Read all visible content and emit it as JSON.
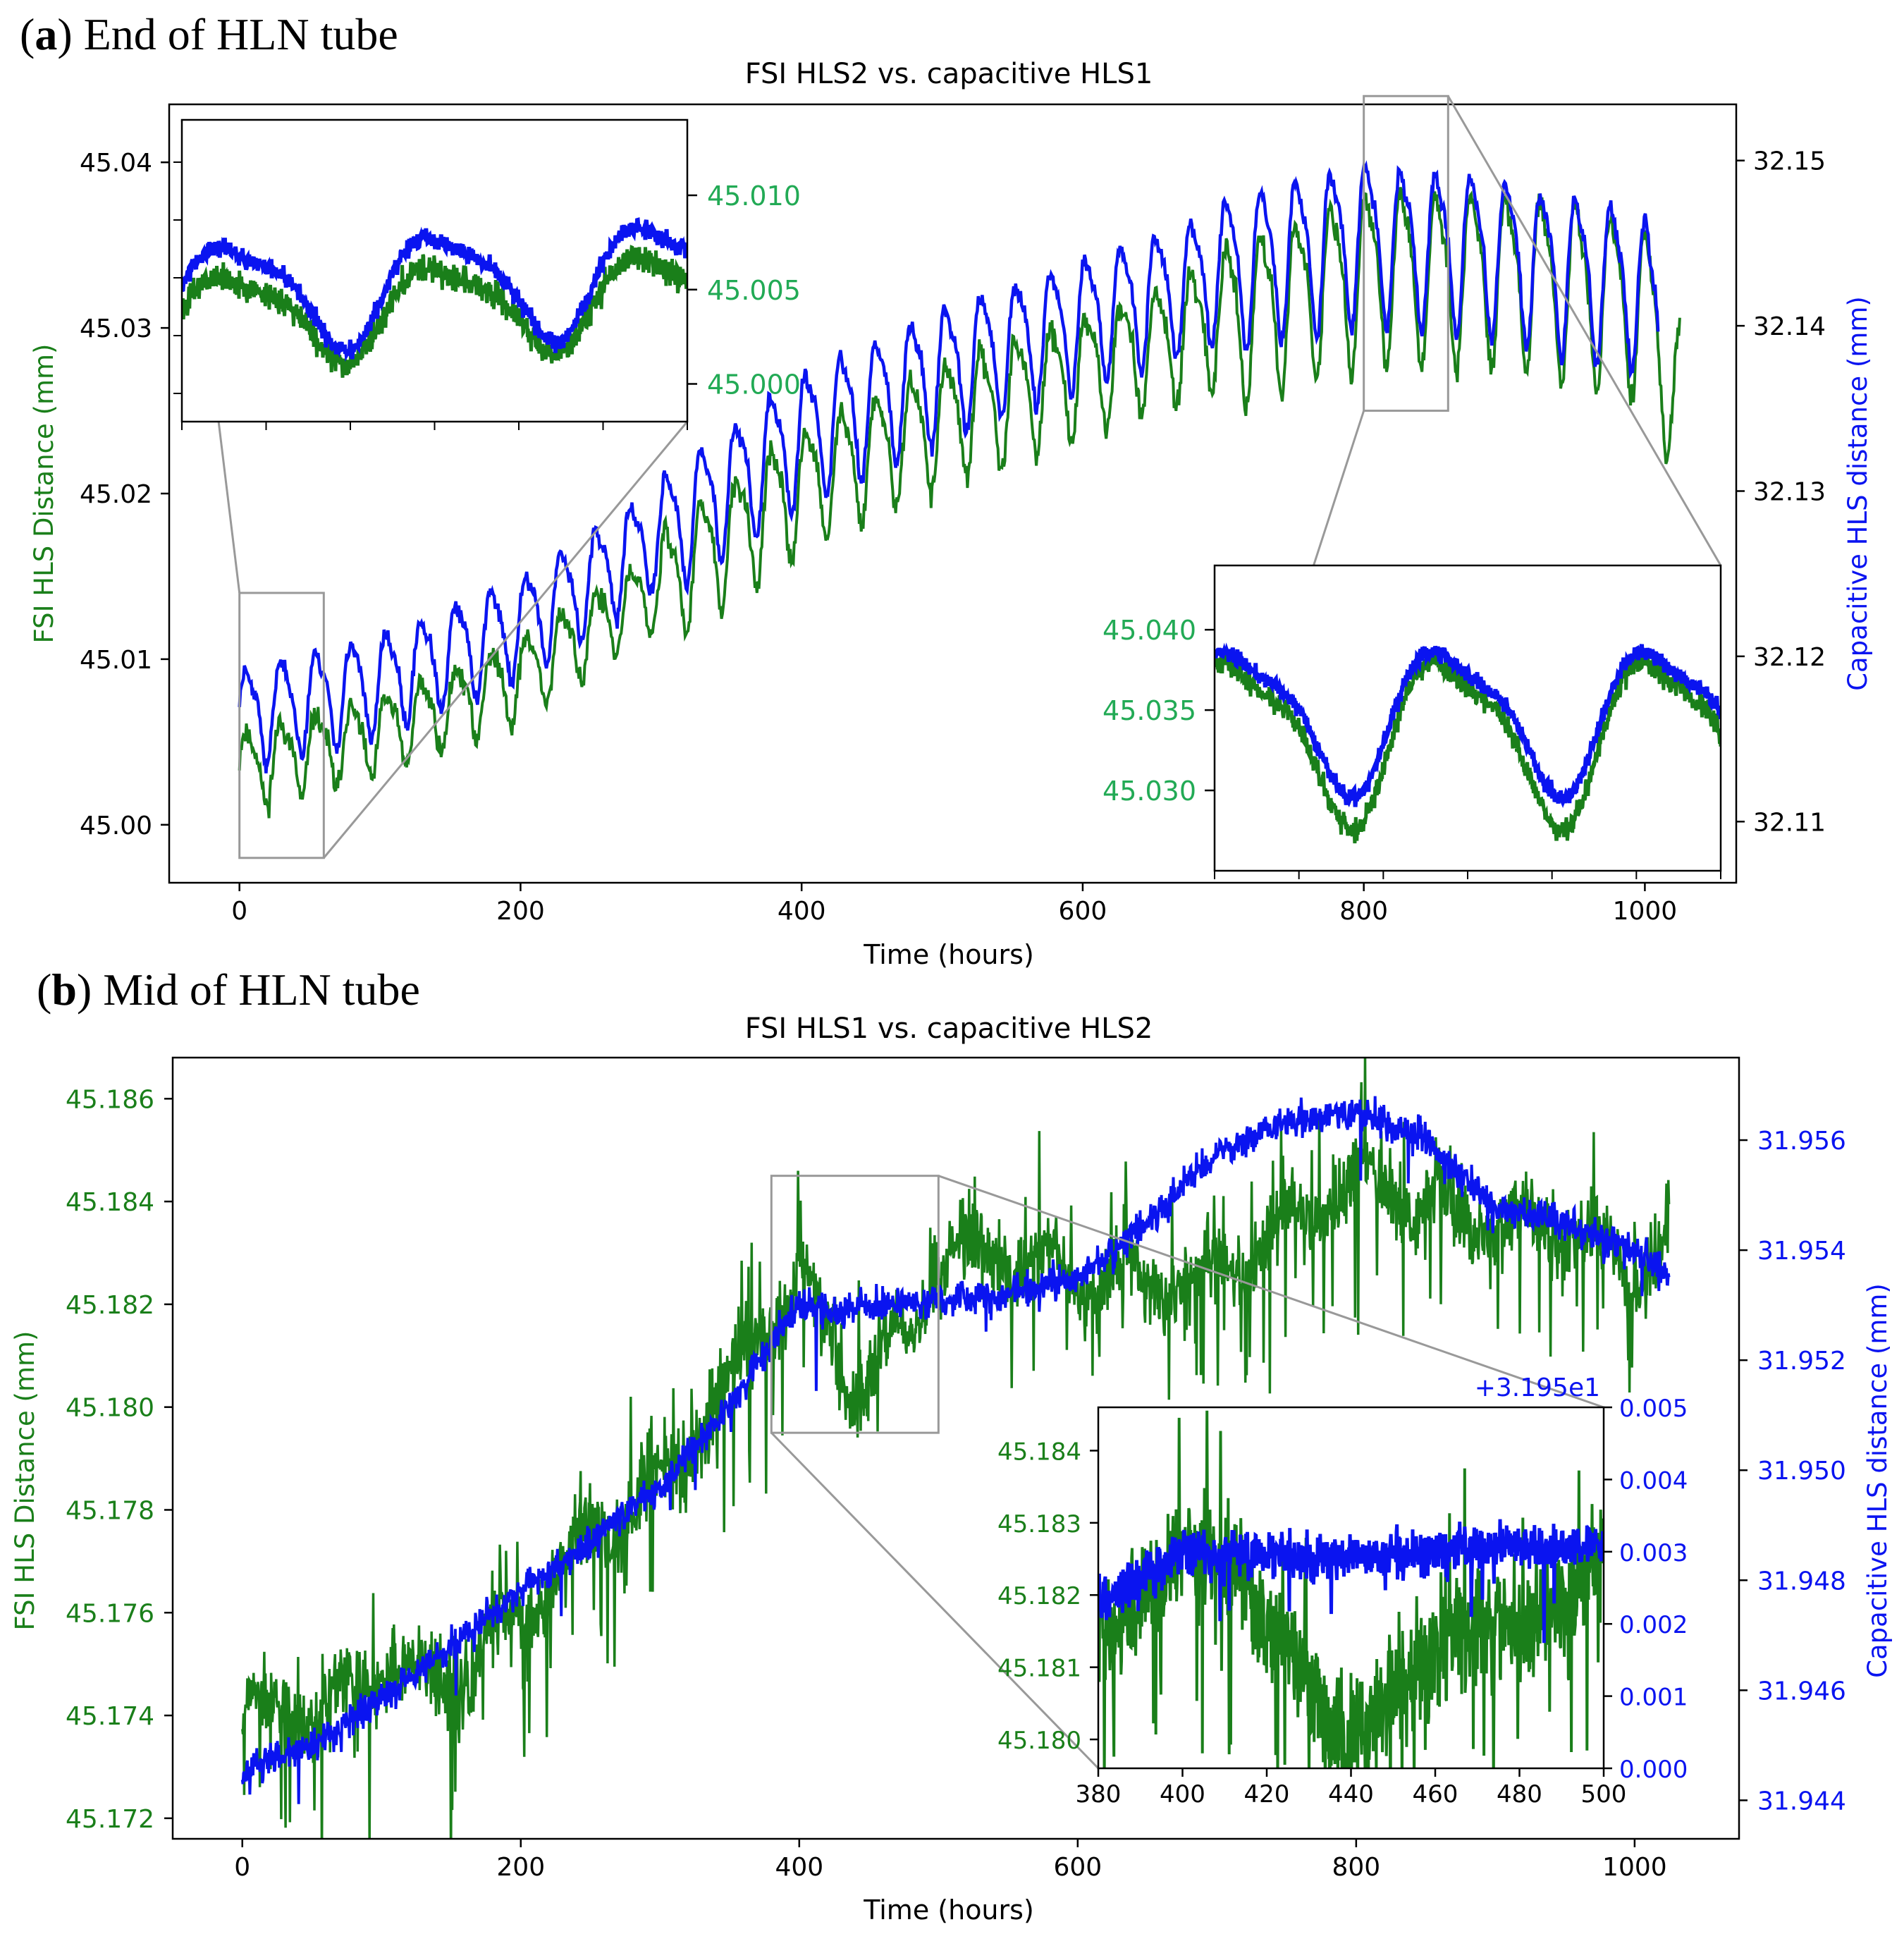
{
  "chart_data": [
    {
      "type": "line",
      "panel_label": "a",
      "panel_caption": "End of HLN tube",
      "title": "FSI HLS2 vs. capacitive HLS1",
      "xlabel": "Time (hours)",
      "ylabel_left": "FSI HLS Distance (mm)",
      "ylabel_right": "Capacitive HLS distance (mm)",
      "xlim": [
        -50,
        1065
      ],
      "xticks": [
        "0",
        "200",
        "400",
        "600",
        "800",
        "1000"
      ],
      "ylim_left": [
        44.9965,
        45.0435
      ],
      "yticks_left": [
        "45.00",
        "45.01",
        "45.02",
        "45.03",
        "45.04"
      ],
      "ylim_right": [
        32.1063,
        32.1534
      ],
      "yticks_right": [
        "32.11",
        "32.12",
        "32.13",
        "32.14",
        "32.15"
      ],
      "series": [
        {
          "name": "FSI HLS2",
          "color": "#1a7f1a",
          "axis": "left",
          "trend": {
            "t": [
              0,
              100,
              200,
              300,
              400,
              500,
              600,
              700,
              800,
              900,
              1000,
              1025
            ],
            "v": [
              45.0035,
              45.0055,
              45.009,
              45.0145,
              45.0205,
              45.0245,
              45.0275,
              45.0305,
              45.0335,
              45.0335,
              45.0315,
              45.0255
            ]
          },
          "amplitude": [
            0.0022,
            0.0034,
            0.0048
          ],
          "noise": 0.0007
        },
        {
          "name": "Capacitive HLS1",
          "color": "#0a14f0",
          "axis": "right",
          "trend": {
            "t": [
              0,
              100,
              200,
              300,
              400,
              500,
              600,
              700,
              800,
              900,
              1000,
              1010
            ],
            "v": [
              32.1165,
              32.1185,
              32.122,
              32.1275,
              32.1335,
              32.1375,
              32.1405,
              32.1435,
              32.1455,
              32.1445,
              32.1425,
              32.1395
            ]
          },
          "amplitude": [
            0.0028,
            0.0036,
            0.0044
          ],
          "noise": 0.0005
        }
      ],
      "period_hours": 24.9,
      "insets": [
        {
          "name": "inset-upper-left",
          "xlim": [
            0,
            60
          ],
          "ylim": [
            44.998,
            45.014
          ],
          "yticks": [
            "45.000",
            "45.005",
            "45.010"
          ],
          "tick_color": "#22aa55"
        },
        {
          "name": "inset-lower-right",
          "xlim": [
            800,
            860
          ],
          "ylim": [
            45.025,
            45.044
          ],
          "yticks": [
            "45.030",
            "45.035",
            "45.040"
          ],
          "tick_color": "#22aa55"
        }
      ]
    },
    {
      "type": "line",
      "panel_label": "b",
      "panel_caption": "Mid of HLN tube",
      "title": "FSI HLS1 vs. capacitive HLS2",
      "xlabel": "Time (hours)",
      "ylabel_left": "FSI HLS Distance (mm)",
      "ylabel_right": "Capacitive HLS distance (mm)",
      "xlim": [
        -50,
        1075
      ],
      "xticks": [
        "0",
        "200",
        "400",
        "600",
        "800",
        "1000"
      ],
      "ylim_left": [
        45.1716,
        45.1868
      ],
      "yticks_left": [
        "45.172",
        "45.174",
        "45.176",
        "45.178",
        "45.180",
        "45.182",
        "45.184",
        "45.186"
      ],
      "ylim_right": [
        31.9433,
        31.9575
      ],
      "yticks_right": [
        "31.944",
        "31.946",
        "31.948",
        "31.950",
        "31.952",
        "31.954",
        "31.956"
      ],
      "series": [
        {
          "name": "FSI HLS1",
          "color": "#1a7f1a",
          "axis": "left",
          "trend": {
            "t": [
              0,
              60,
              100,
              150,
              200,
              250,
              300,
              350,
              400,
              420,
              440,
              460,
              480,
              500,
              550,
              600,
              650,
              700,
              750,
              800,
              850,
              900,
              950,
              1000,
              1025
            ],
            "v": [
              45.174,
              45.174,
              45.175,
              45.1745,
              45.176,
              45.1775,
              45.1785,
              45.1805,
              45.1825,
              45.1815,
              45.1805,
              45.181,
              45.1815,
              45.183,
              45.183,
              45.1825,
              45.1825,
              45.1825,
              45.1835,
              45.1845,
              45.184,
              45.1835,
              45.1835,
              45.1825,
              45.1835
            ]
          },
          "noise": 0.0013
        },
        {
          "name": "Capacitive HLS2",
          "color": "#0a14f0",
          "axis": "right",
          "trend": {
            "t": [
              0,
              50,
              100,
              150,
              200,
              250,
              300,
              350,
              400,
              430,
              460,
              500,
              550,
              600,
              650,
              700,
              750,
              800,
              850,
              900,
              950,
              1000,
              1025
            ],
            "v": [
              31.9445,
              31.945,
              31.9458,
              31.9468,
              31.9478,
              31.9487,
              31.9497,
              31.9512,
              31.953,
              31.9529,
              31.953,
              31.9531,
              31.9532,
              31.9535,
              31.9545,
              31.9558,
              31.9563,
              31.9565,
              31.956,
              31.9548,
              31.9545,
              31.954,
              31.9535
            ]
          },
          "noise": 0.00055
        }
      ],
      "insets": [
        {
          "name": "inset-b",
          "xlim": [
            380,
            500
          ],
          "xticks": [
            "380",
            "400",
            "420",
            "440",
            "460",
            "480",
            "500"
          ],
          "ylim_left": [
            45.1796,
            45.1846
          ],
          "yticks_left": [
            "45.180",
            "45.181",
            "45.182",
            "45.183",
            "45.184"
          ],
          "ylim_right": [
            0.0,
            0.005
          ],
          "yticks_right": [
            "0.000",
            "0.001",
            "0.002",
            "0.003",
            "0.004",
            "0.005"
          ],
          "offset_label": "+3.195e1",
          "tick_color_left": "#1a7f1a",
          "tick_color_right": "#0a14f0"
        }
      ]
    }
  ],
  "colors": {
    "fsi": "#1a7f1a",
    "capacitive": "#0a14f0",
    "inset_tick_green": "#22aa55",
    "zoom_box": "#999999",
    "axes": "#000000"
  }
}
